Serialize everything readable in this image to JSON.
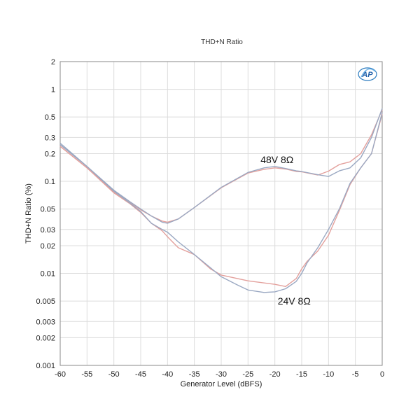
{
  "chart_data": {
    "type": "line",
    "title": "THD+N Ratio",
    "xlabel": "Generator Level (dBFS)",
    "ylabel": "THD+N Ratio (%)",
    "xlim": [
      -60,
      0
    ],
    "ylim": [
      0.001,
      2
    ],
    "yscale": "log",
    "grid": true,
    "x_ticks": [
      "-60",
      "-55",
      "-50",
      "-45",
      "-40",
      "-35",
      "-30",
      "-25",
      "-20",
      "-15",
      "-10",
      "-5",
      "0"
    ],
    "y_ticks": [
      {
        "value": 2,
        "label": "2"
      },
      {
        "value": 1,
        "label": "1"
      },
      {
        "value": 0.5,
        "label": "0.5"
      },
      {
        "value": 0.3,
        "label": "0.3"
      },
      {
        "value": 0.2,
        "label": "0.2"
      },
      {
        "value": 0.1,
        "label": "0.1"
      },
      {
        "value": 0.05,
        "label": "0.05"
      },
      {
        "value": 0.03,
        "label": "0.03"
      },
      {
        "value": 0.02,
        "label": "0.02"
      },
      {
        "value": 0.01,
        "label": "0.01"
      },
      {
        "value": 0.005,
        "label": "0.005"
      },
      {
        "value": 0.003,
        "label": "0.003"
      },
      {
        "value": 0.002,
        "label": "0.002"
      },
      {
        "value": 0.001,
        "label": "0.001"
      }
    ],
    "series": [
      {
        "color": "#e3a09c",
        "x": [
          -60,
          -55,
          -50,
          -47,
          -45,
          -43,
          -41,
          -40,
          -38,
          -35,
          -30,
          -25,
          -22,
          -20,
          -18,
          -16,
          -15,
          -12,
          -10,
          -8,
          -6,
          -4,
          -2,
          0
        ],
        "y": [
          0.24,
          0.14,
          0.077,
          0.059,
          0.049,
          0.042,
          0.037,
          0.036,
          0.039,
          0.052,
          0.085,
          0.123,
          0.135,
          0.14,
          0.136,
          0.128,
          0.127,
          0.117,
          0.129,
          0.152,
          0.163,
          0.2,
          0.32,
          0.6
        ]
      },
      {
        "color": "#9aa8c2",
        "x": [
          -60,
          -55,
          -50,
          -47,
          -45,
          -43,
          -41,
          -40,
          -38,
          -35,
          -30,
          -25,
          -22,
          -20,
          -18,
          -16,
          -15,
          -12,
          -10,
          -8,
          -6,
          -4,
          -2,
          0
        ],
        "y": [
          0.26,
          0.145,
          0.08,
          0.06,
          0.05,
          0.042,
          0.036,
          0.035,
          0.039,
          0.052,
          0.086,
          0.125,
          0.14,
          0.145,
          0.138,
          0.13,
          0.128,
          0.118,
          0.113,
          0.13,
          0.14,
          0.18,
          0.3,
          0.62
        ]
      },
      {
        "color": "#e3a09c",
        "x": [
          -60,
          -55,
          -50,
          -47,
          -45,
          -43,
          -41,
          -40,
          -38,
          -35,
          -32,
          -30,
          -25,
          -20,
          -18,
          -16,
          -15,
          -14,
          -12,
          -10,
          -8,
          -6,
          -4,
          -2,
          0
        ],
        "y": [
          0.24,
          0.14,
          0.075,
          0.057,
          0.046,
          0.035,
          0.029,
          0.025,
          0.019,
          0.016,
          0.0112,
          0.0096,
          0.0083,
          0.0076,
          0.0072,
          0.0088,
          0.0112,
          0.0135,
          0.0175,
          0.026,
          0.048,
          0.092,
          0.14,
          0.2,
          0.54
        ]
      },
      {
        "color": "#9aa8c2",
        "x": [
          -60,
          -55,
          -50,
          -47,
          -45,
          -43,
          -41,
          -40,
          -38,
          -35,
          -32,
          -30,
          -27,
          -25,
          -22,
          -20,
          -18,
          -16,
          -15,
          -14,
          -12,
          -10,
          -8,
          -6,
          -4,
          -2,
          0
        ],
        "y": [
          0.25,
          0.145,
          0.078,
          0.058,
          0.047,
          0.035,
          0.03,
          0.028,
          0.022,
          0.016,
          0.0115,
          0.0092,
          0.0075,
          0.0066,
          0.0062,
          0.0063,
          0.0068,
          0.0082,
          0.01,
          0.013,
          0.019,
          0.03,
          0.05,
          0.095,
          0.14,
          0.2,
          0.56
        ]
      }
    ],
    "annotations": [
      {
        "text": "48V 8Ω",
        "x": -19.6,
        "y": 0.158
      },
      {
        "text": "24V 8Ω",
        "x": -16.4,
        "y": 0.0046
      }
    ]
  }
}
